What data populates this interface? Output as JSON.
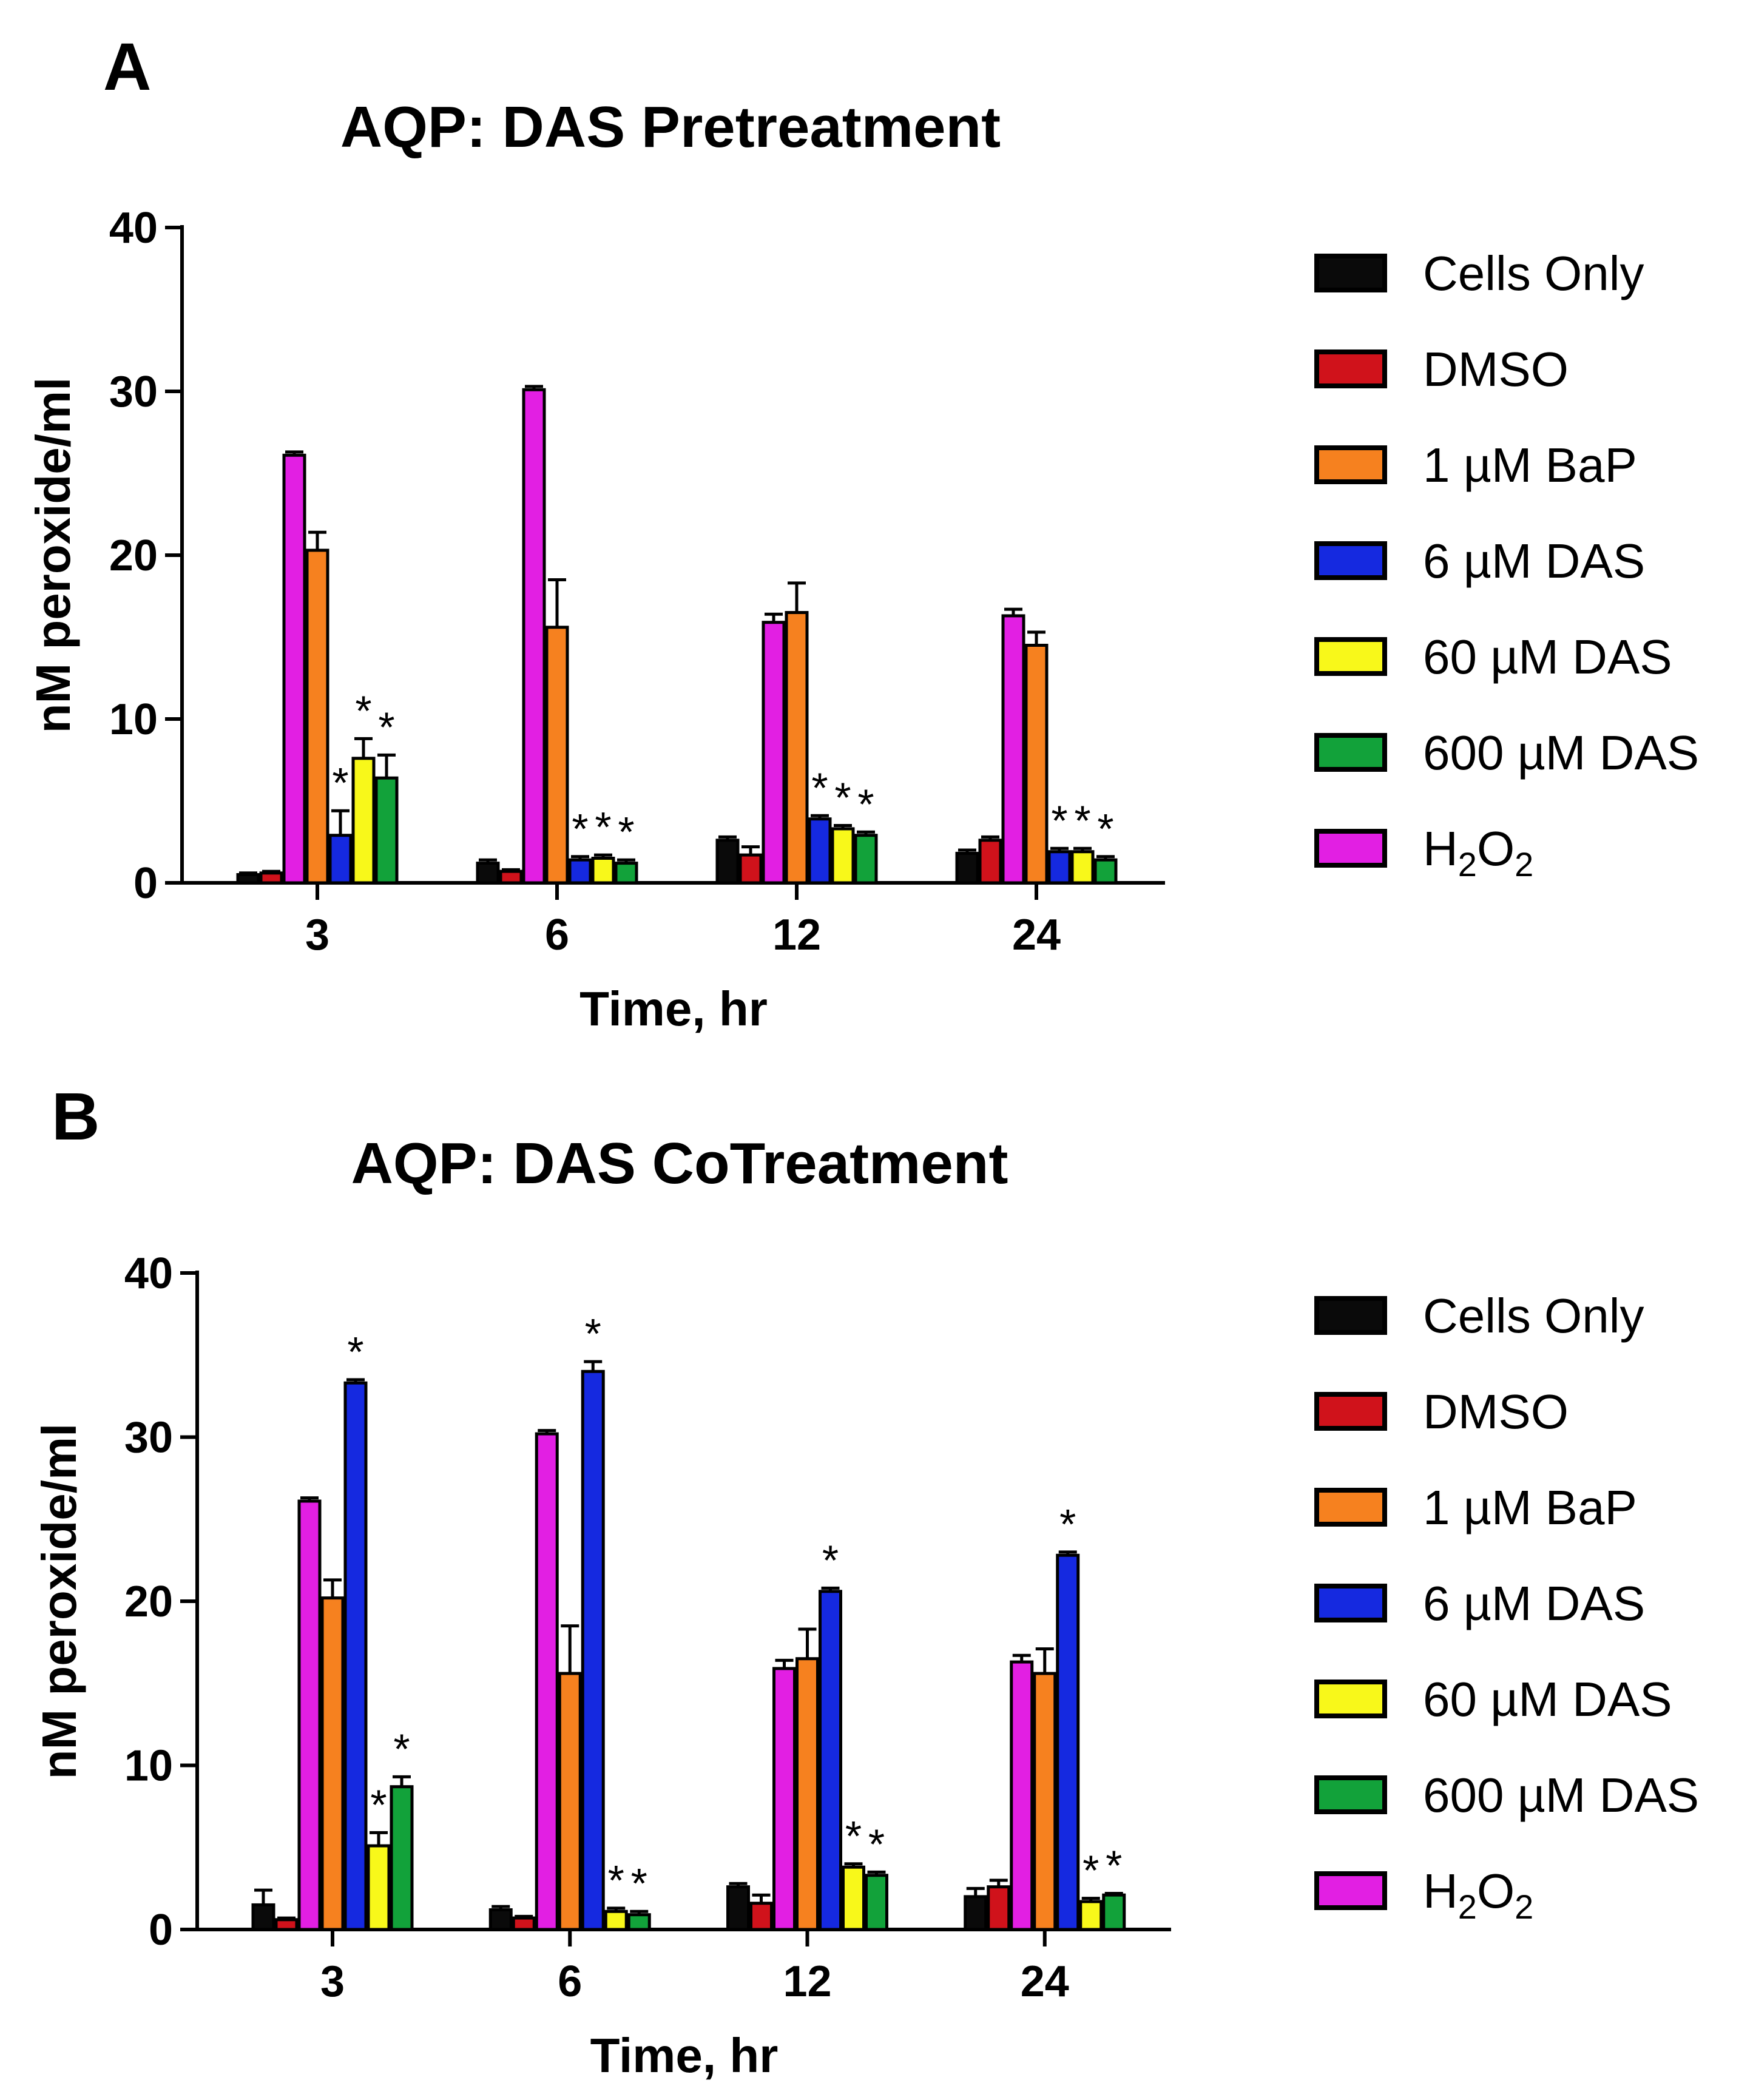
{
  "panels": [
    {
      "letter": "A",
      "title": "AQP: DAS Pretreatment"
    },
    {
      "letter": "B",
      "title": "AQP: DAS CoTreatment"
    }
  ],
  "colors": {
    "Cells Only": "#0a0a0a",
    "DMSO": "#d0121b",
    "1 µM BaP": "#f6811f",
    "6 µM DAS": "#1529e0",
    "60 µM DAS": "#f8f81a",
    "600 µM DAS": "#12a23a",
    "H2O2": "#e21fe3"
  },
  "chart_data": [
    {
      "type": "bar",
      "title": "AQP: DAS Pretreatment",
      "xlabel": "Time, hr",
      "ylabel": "nM peroxide/ml",
      "ylim": [
        0,
        40
      ],
      "yticks": [
        "0",
        "10",
        "20",
        "30",
        "40"
      ],
      "categories": [
        "3",
        "6",
        "12",
        "24"
      ],
      "legend_position": "right",
      "series": [
        {
          "name": "Cells Only",
          "values": [
            0.5,
            1.2,
            2.6,
            1.8
          ],
          "errors": [
            0.1,
            0.2,
            0.2,
            0.2
          ]
        },
        {
          "name": "DMSO",
          "values": [
            0.6,
            0.7,
            1.7,
            2.6
          ],
          "errors": [
            0.1,
            0.1,
            0.5,
            0.2
          ]
        },
        {
          "name": "H2O2",
          "values": [
            26.1,
            30.1,
            15.9,
            16.3
          ],
          "errors": [
            0.2,
            0.2,
            0.5,
            0.4
          ]
        },
        {
          "name": "1 µM BaP",
          "values": [
            20.3,
            15.6,
            16.5,
            14.5
          ],
          "errors": [
            1.1,
            2.9,
            1.8,
            0.8
          ]
        },
        {
          "name": "6 µM DAS",
          "values": [
            2.9,
            1.4,
            3.9,
            1.9
          ],
          "errors": [
            1.5,
            0.2,
            0.2,
            0.2
          ]
        },
        {
          "name": "60 µM DAS",
          "values": [
            7.6,
            1.5,
            3.3,
            1.9
          ],
          "errors": [
            1.2,
            0.2,
            0.2,
            0.2
          ]
        },
        {
          "name": "600 µM DAS",
          "values": [
            6.4,
            1.2,
            2.9,
            1.4
          ],
          "errors": [
            1.4,
            0.2,
            0.2,
            0.2
          ]
        }
      ],
      "annotations": [
        {
          "category": "3",
          "series": "6 µM DAS",
          "text": "*"
        },
        {
          "category": "3",
          "series": "60 µM DAS",
          "text": "*"
        },
        {
          "category": "3",
          "series": "600 µM DAS",
          "text": "*"
        },
        {
          "category": "6",
          "series": "6 µM DAS",
          "text": "*"
        },
        {
          "category": "6",
          "series": "60 µM DAS",
          "text": "*"
        },
        {
          "category": "6",
          "series": "600 µM DAS",
          "text": "*"
        },
        {
          "category": "12",
          "series": "6 µM DAS",
          "text": "*"
        },
        {
          "category": "12",
          "series": "60 µM DAS",
          "text": "*"
        },
        {
          "category": "12",
          "series": "600 µM DAS",
          "text": "*"
        },
        {
          "category": "24",
          "series": "6 µM DAS",
          "text": "*"
        },
        {
          "category": "24",
          "series": "60 µM DAS",
          "text": "*"
        },
        {
          "category": "24",
          "series": "600 µM DAS",
          "text": "*"
        }
      ]
    },
    {
      "type": "bar",
      "title": "AQP: DAS CoTreatment",
      "xlabel": "Time, hr",
      "ylabel": "nM peroxide/ml",
      "ylim": [
        0,
        40
      ],
      "yticks": [
        "0",
        "10",
        "20",
        "30",
        "40"
      ],
      "categories": [
        "3",
        "6",
        "12",
        "24"
      ],
      "legend_position": "right",
      "series": [
        {
          "name": "Cells Only",
          "values": [
            1.5,
            1.2,
            2.6,
            2.0
          ],
          "errors": [
            0.9,
            0.2,
            0.2,
            0.5
          ]
        },
        {
          "name": "DMSO",
          "values": [
            0.6,
            0.7,
            1.6,
            2.6
          ],
          "errors": [
            0.1,
            0.1,
            0.5,
            0.4
          ]
        },
        {
          "name": "H2O2",
          "values": [
            26.1,
            30.2,
            15.9,
            16.3
          ],
          "errors": [
            0.2,
            0.2,
            0.5,
            0.4
          ]
        },
        {
          "name": "1 µM BaP",
          "values": [
            20.2,
            15.6,
            16.5,
            15.6
          ],
          "errors": [
            1.1,
            2.9,
            1.8,
            1.5
          ]
        },
        {
          "name": "6 µM DAS",
          "values": [
            33.3,
            34.0,
            20.6,
            22.8
          ],
          "errors": [
            0.2,
            0.6,
            0.2,
            0.2
          ]
        },
        {
          "name": "60 µM DAS",
          "values": [
            5.1,
            1.1,
            3.8,
            1.7
          ],
          "errors": [
            0.8,
            0.2,
            0.2,
            0.2
          ]
        },
        {
          "name": "600 µM DAS",
          "values": [
            8.7,
            0.9,
            3.3,
            2.1
          ],
          "errors": [
            0.6,
            0.2,
            0.2,
            0.1
          ]
        }
      ],
      "annotations": [
        {
          "category": "3",
          "series": "6 µM DAS",
          "text": "*"
        },
        {
          "category": "3",
          "series": "60 µM DAS",
          "text": "*"
        },
        {
          "category": "3",
          "series": "600 µM DAS",
          "text": "*"
        },
        {
          "category": "6",
          "series": "6 µM DAS",
          "text": "*"
        },
        {
          "category": "6",
          "series": "60 µM DAS",
          "text": "*"
        },
        {
          "category": "6",
          "series": "600 µM DAS",
          "text": "*"
        },
        {
          "category": "12",
          "series": "6 µM DAS",
          "text": "*"
        },
        {
          "category": "12",
          "series": "60 µM DAS",
          "text": "*"
        },
        {
          "category": "12",
          "series": "600 µM DAS",
          "text": "*"
        },
        {
          "category": "24",
          "series": "6 µM DAS",
          "text": "*"
        },
        {
          "category": "24",
          "series": "60 µM DAS",
          "text": "*"
        },
        {
          "category": "24",
          "series": "600 µM DAS",
          "text": "*"
        }
      ]
    }
  ],
  "legend": [
    {
      "name": "Cells Only",
      "label": "Cells Only"
    },
    {
      "name": "DMSO",
      "label": "DMSO"
    },
    {
      "name": "1 µM BaP",
      "label": "1 µM BaP"
    },
    {
      "name": "6 µM DAS",
      "label": "6 µM DAS"
    },
    {
      "name": "60 µM DAS",
      "label": "60 µM DAS"
    },
    {
      "name": "600 µM DAS",
      "label": "600 µM DAS"
    },
    {
      "name": "H2O2",
      "label": "H",
      "sub": "2",
      "label2": "O",
      "sub2": "2"
    }
  ]
}
